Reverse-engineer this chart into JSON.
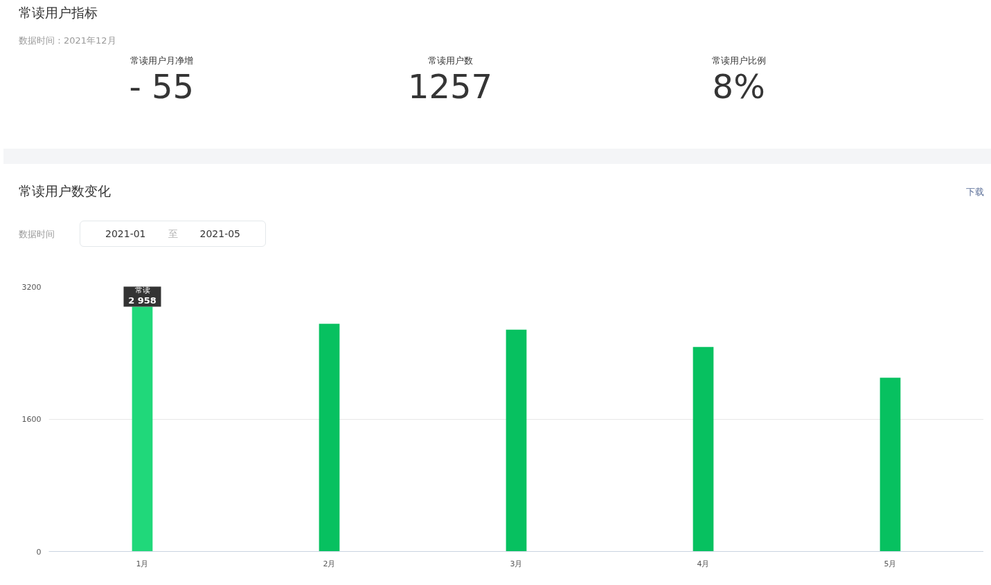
{
  "chart_data": [
    {
      "type": "other",
      "title": "常读用户指标",
      "subtitle": "数据时间：2021年12月",
      "categories": [
        "常读用户月净增",
        "常读用户数",
        "常读用户比例"
      ],
      "value_labels": [
        "- 55",
        "1257",
        "8%"
      ]
    },
    {
      "type": "bar",
      "title": "常读用户数变化",
      "categories": [
        "1月",
        "2月",
        "3月",
        "4月",
        "5月"
      ],
      "values": [
        2958,
        2750,
        2680,
        2470,
        2100
      ],
      "colors": [
        "#20d87a",
        "#07c160",
        "#07c160",
        "#07c160",
        "#07c160"
      ],
      "value_labels": [
        "2 958",
        null,
        null,
        null,
        null
      ],
      "ylim": [
        0,
        3200
      ],
      "yticks": [
        0,
        1600,
        3200
      ],
      "grid": "y",
      "annotations": [
        "下载",
        "数据时间",
        "2021-01",
        "至",
        "2021-05",
        {
          "text": "常读",
          "x": "1月",
          "y": 2958
        }
      ]
    }
  ]
}
